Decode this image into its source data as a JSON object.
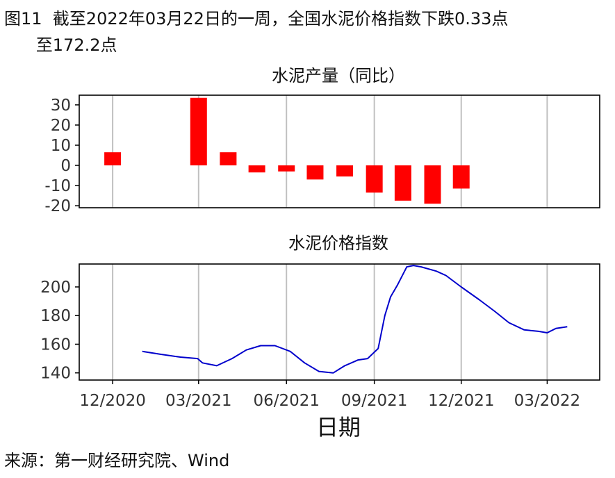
{
  "figure": {
    "title": "图11  截至2022年03月22日的一周，全国水泥价格指数下跌0.33点\n      至172.2点",
    "source": "来源：第一财经研究院、Wind",
    "xlabel": "日期"
  },
  "chart_data": [
    {
      "type": "bar",
      "title": "水泥产量（同比）",
      "x_ticks": [
        "12/2020",
        "03/2021",
        "06/2021",
        "09/2021",
        "12/2021",
        "03/2022"
      ],
      "x_tick_dates": [
        "2020-12-01",
        "2021-03-01",
        "2021-06-01",
        "2021-09-01",
        "2021-12-01",
        "2022-03-01"
      ],
      "categories": [
        "2020-12",
        "2021-03",
        "2021-04",
        "2021-05",
        "2021-06",
        "2021-07",
        "2021-08",
        "2021-09",
        "2021-10",
        "2021-11",
        "2021-12"
      ],
      "values": [
        6.5,
        33.5,
        6.5,
        -3.5,
        -3.0,
        -7.0,
        -5.5,
        -13.5,
        -17.5,
        -19.0,
        -11.5
      ],
      "ylim": [
        -21,
        34.8
      ],
      "y_ticks": [
        -20,
        -10,
        0,
        10,
        20,
        30
      ],
      "xlim": [
        "2020-10-27",
        "2022-04-25"
      ],
      "grid": "vertical",
      "color": "#ff0000"
    },
    {
      "type": "line",
      "title": "水泥价格指数",
      "x_ticks": [
        "12/2020",
        "03/2021",
        "06/2021",
        "09/2021",
        "12/2021",
        "03/2022"
      ],
      "x_tick_dates": [
        "2020-12-01",
        "2021-03-01",
        "2021-06-01",
        "2021-09-01",
        "2021-12-01",
        "2022-03-01"
      ],
      "x": [
        "2021-01-01",
        "2021-01-20",
        "2021-02-10",
        "2021-02-28",
        "2021-03-05",
        "2021-03-20",
        "2021-04-05",
        "2021-04-20",
        "2021-05-05",
        "2021-05-20",
        "2021-06-05",
        "2021-06-20",
        "2021-07-05",
        "2021-07-20",
        "2021-08-01",
        "2021-08-15",
        "2021-08-25",
        "2021-09-05",
        "2021-09-12",
        "2021-09-18",
        "2021-09-25",
        "2021-10-05",
        "2021-10-12",
        "2021-10-20",
        "2021-11-05",
        "2021-11-15",
        "2021-12-01",
        "2021-12-20",
        "2022-01-05",
        "2022-01-20",
        "2022-02-05",
        "2022-02-20",
        "2022-03-01",
        "2022-03-10",
        "2022-03-22"
      ],
      "values": [
        155,
        153,
        151,
        150,
        147,
        145,
        150,
        156,
        159,
        159,
        155,
        147,
        141,
        140,
        145,
        149,
        150,
        157,
        180,
        193,
        201,
        214,
        215,
        214,
        211,
        208,
        200,
        191,
        183,
        175,
        170,
        169,
        168,
        171,
        172.2
      ],
      "ylim": [
        135,
        216
      ],
      "y_ticks": [
        140,
        160,
        180,
        200
      ],
      "xlim": [
        "2020-10-27",
        "2022-04-25"
      ],
      "grid": "vertical",
      "color": "#0000cc"
    }
  ]
}
